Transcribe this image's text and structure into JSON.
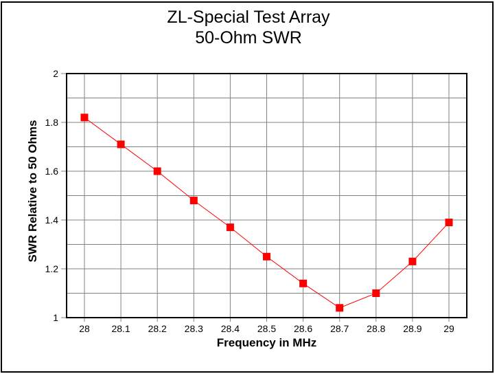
{
  "chart_data": {
    "type": "line",
    "title_lines": [
      "ZL-Special Test Array",
      "50-Ohm SWR"
    ],
    "xlabel": "Frequency in MHz",
    "ylabel": "SWR Relative to 50 Ohms",
    "series_name": "50-Ohm SWR",
    "x": [
      28.0,
      28.1,
      28.2,
      28.3,
      28.4,
      28.5,
      28.6,
      28.7,
      28.8,
      28.9,
      29.0
    ],
    "values": [
      1.82,
      1.71,
      1.6,
      1.48,
      1.37,
      1.25,
      1.14,
      1.04,
      1.1,
      1.23,
      1.39
    ],
    "xlim": [
      27.95,
      29.05
    ],
    "ylim": [
      1,
      2
    ],
    "grid": true,
    "grid_step_y": 0.1,
    "legend": "none",
    "marker": "square",
    "xticks": {
      "values": [
        28.0,
        28.1,
        28.2,
        28.3,
        28.4,
        28.5,
        28.6,
        28.7,
        28.8,
        28.9,
        29.0
      ],
      "labels": [
        "28",
        "28.1",
        "28.2",
        "28.3",
        "28.4",
        "28.5",
        "28.6",
        "28.7",
        "28.8",
        "28.9",
        "29"
      ]
    },
    "yticks": {
      "values": [
        2.0,
        1.8,
        1.6,
        1.4,
        1.2,
        1.0
      ],
      "labels": [
        "2",
        "1.8",
        "1.6",
        "1.4",
        "1.2",
        "1"
      ]
    },
    "colors": {
      "line": "#FF0000",
      "marker": "#FF0000",
      "grid": "#808080",
      "axis": "#000000",
      "text": "#000000",
      "background": "#FFFFFF"
    }
  }
}
